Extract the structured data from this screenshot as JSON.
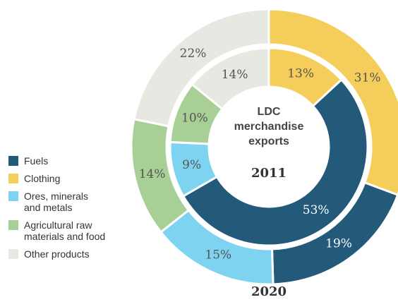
{
  "chart_data": {
    "type": "donut",
    "title": "LDC merchandise exports",
    "categories": [
      "Clothing",
      "Fuels",
      "Ores, minerals and metals",
      "Agricultural raw materials and food",
      "Other products"
    ],
    "colors": [
      "#f5cd5a",
      "#235a7a",
      "#7dd3f0",
      "#a8cf96",
      "#e8e8e3"
    ],
    "legend_order": [
      1,
      0,
      2,
      3,
      4
    ],
    "series": [
      {
        "name": "2020",
        "values": [
          31,
          19,
          15,
          14,
          22
        ],
        "value_labels": [
          "31%",
          "19%",
          "15%",
          "14%",
          "22%"
        ]
      },
      {
        "name": "2011",
        "values": [
          13,
          53,
          9,
          10,
          14
        ],
        "value_labels": [
          "13%",
          "53%",
          "9%",
          "10%",
          "14%"
        ]
      }
    ]
  }
}
